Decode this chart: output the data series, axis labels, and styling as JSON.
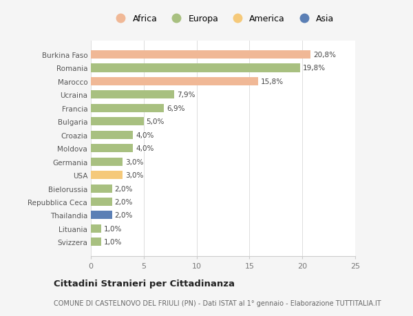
{
  "countries": [
    "Svizzera",
    "Lituania",
    "Thailandia",
    "Repubblica Ceca",
    "Bielorussia",
    "USA",
    "Germania",
    "Moldova",
    "Croazia",
    "Bulgaria",
    "Francia",
    "Ucraina",
    "Marocco",
    "Romania",
    "Burkina Faso"
  ],
  "values": [
    1.0,
    1.0,
    2.0,
    2.0,
    2.0,
    3.0,
    3.0,
    4.0,
    4.0,
    5.0,
    6.9,
    7.9,
    15.8,
    19.8,
    20.8
  ],
  "labels": [
    "1,0%",
    "1,0%",
    "2,0%",
    "2,0%",
    "2,0%",
    "3,0%",
    "3,0%",
    "4,0%",
    "4,0%",
    "5,0%",
    "6,9%",
    "7,9%",
    "15,8%",
    "19,8%",
    "20,8%"
  ],
  "colors": [
    "#a8c080",
    "#a8c080",
    "#5b7fb5",
    "#a8c080",
    "#a8c080",
    "#f5c97a",
    "#a8c080",
    "#a8c080",
    "#a8c080",
    "#a8c080",
    "#a8c080",
    "#a8c080",
    "#f0b896",
    "#a8c080",
    "#f0b896"
  ],
  "continent_colors": {
    "Africa": "#f0b896",
    "Europa": "#a8c080",
    "America": "#f5c97a",
    "Asia": "#5b7fb5"
  },
  "legend_order": [
    "Africa",
    "Europa",
    "America",
    "Asia"
  ],
  "xlim": [
    0,
    25
  ],
  "xticks": [
    0,
    5,
    10,
    15,
    20,
    25
  ],
  "title": "Cittadini Stranieri per Cittadinanza",
  "subtitle": "COMUNE DI CASTELNOVO DEL FRIULI (PN) - Dati ISTAT al 1° gennaio - Elaborazione TUTTITALIA.IT",
  "bg_color": "#f5f5f5",
  "bar_bg_color": "#ffffff"
}
